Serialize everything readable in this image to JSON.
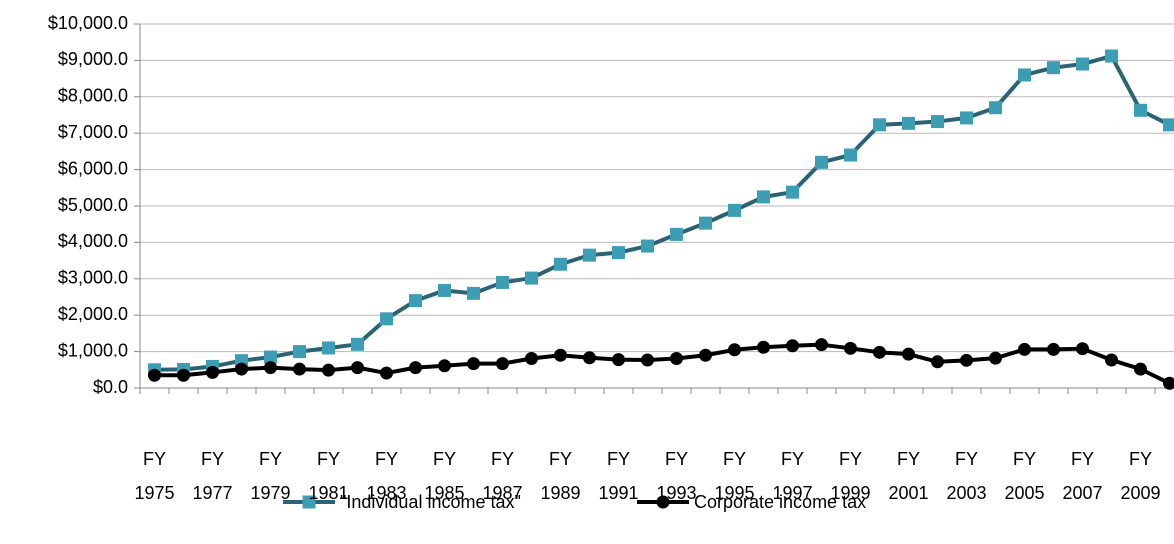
{
  "chart_data": {
    "type": "line",
    "categories": [
      "FY 1975",
      null,
      "FY 1977",
      null,
      "FY 1979",
      null,
      "FY 1981",
      null,
      "FY 1983",
      null,
      "FY 1985",
      null,
      "FY 1987",
      null,
      "FY 1989",
      null,
      "FY 1991",
      null,
      "FY 1993",
      null,
      "FY 1995",
      null,
      "FY 1997",
      null,
      "FY 1999",
      null,
      "FY 2001",
      null,
      "FY 2003",
      null,
      "FY 2005",
      null,
      "FY 2007",
      null,
      "FY 2009",
      null
    ],
    "series": [
      {
        "name": "\"Individual income tax\"",
        "color": "#2b6374",
        "marker": "square",
        "marker_color": "#3c9db5",
        "values": [
          500,
          510,
          590,
          750,
          850,
          1000,
          1100,
          1200,
          1900,
          2400,
          2680,
          2600,
          2900,
          3020,
          3400,
          3650,
          3720,
          3900,
          4220,
          4530,
          4880,
          5250,
          5380,
          6200,
          6400,
          7230,
          7270,
          7320,
          7420,
          7700,
          8600,
          8800,
          8900,
          9120,
          7630,
          7230
        ]
      },
      {
        "name": "Corporate income tax",
        "color": "#000000",
        "marker": "circle",
        "marker_color": "#000000",
        "values": [
          350,
          350,
          430,
          520,
          560,
          520,
          490,
          560,
          410,
          560,
          610,
          670,
          670,
          810,
          900,
          830,
          780,
          770,
          810,
          900,
          1050,
          1120,
          1160,
          1190,
          1090,
          980,
          930,
          720,
          760,
          820,
          1060,
          1060,
          1080,
          770,
          520,
          130
        ]
      }
    ],
    "ylim": [
      0,
      10000
    ],
    "yticks": [
      {
        "value": 0,
        "label": "$0.0"
      },
      {
        "value": 1000,
        "label": "$1,000.0"
      },
      {
        "value": 2000,
        "label": "$2,000.0"
      },
      {
        "value": 3000,
        "label": "$3,000.0"
      },
      {
        "value": 4000,
        "label": "$4,000.0"
      },
      {
        "value": 5000,
        "label": "$5,000.0"
      },
      {
        "value": 6000,
        "label": "$6,000.0"
      },
      {
        "value": 7000,
        "label": "$7,000.0"
      },
      {
        "value": 8000,
        "label": "$8,000.0"
      },
      {
        "value": 9000,
        "label": "$9,000.0"
      },
      {
        "value": 10000,
        "label": "$10,000.0"
      }
    ],
    "grid": true,
    "legend": "bottom"
  }
}
